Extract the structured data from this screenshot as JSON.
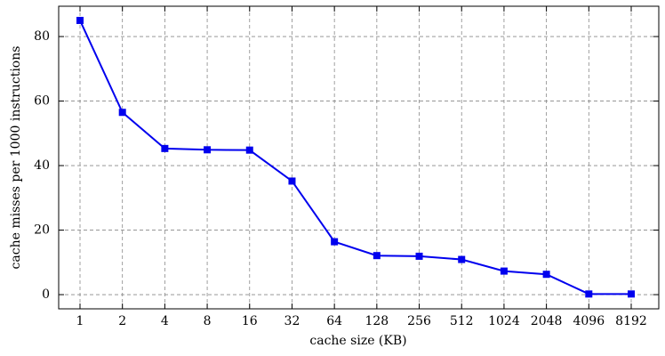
{
  "chart_data": {
    "type": "line",
    "x_label": "cache size (KB)",
    "y_label": "cache misses per 1000 instructions",
    "categories": [
      "1",
      "2",
      "4",
      "8",
      "16",
      "32",
      "64",
      "128",
      "256",
      "512",
      "1024",
      "2048",
      "4096",
      "8192"
    ],
    "series": [
      {
        "color": "#0000ee",
        "values": [
          85,
          56.5,
          45.3,
          44.9,
          44.8,
          35.2,
          16.4,
          12.1,
          11.9,
          10.9,
          7.3,
          6.3,
          0.2,
          0.2
        ]
      }
    ],
    "ylim": [
      -4.4,
      89.4
    ],
    "yticks": [
      0,
      20,
      40,
      60,
      80
    ],
    "grid": true
  }
}
